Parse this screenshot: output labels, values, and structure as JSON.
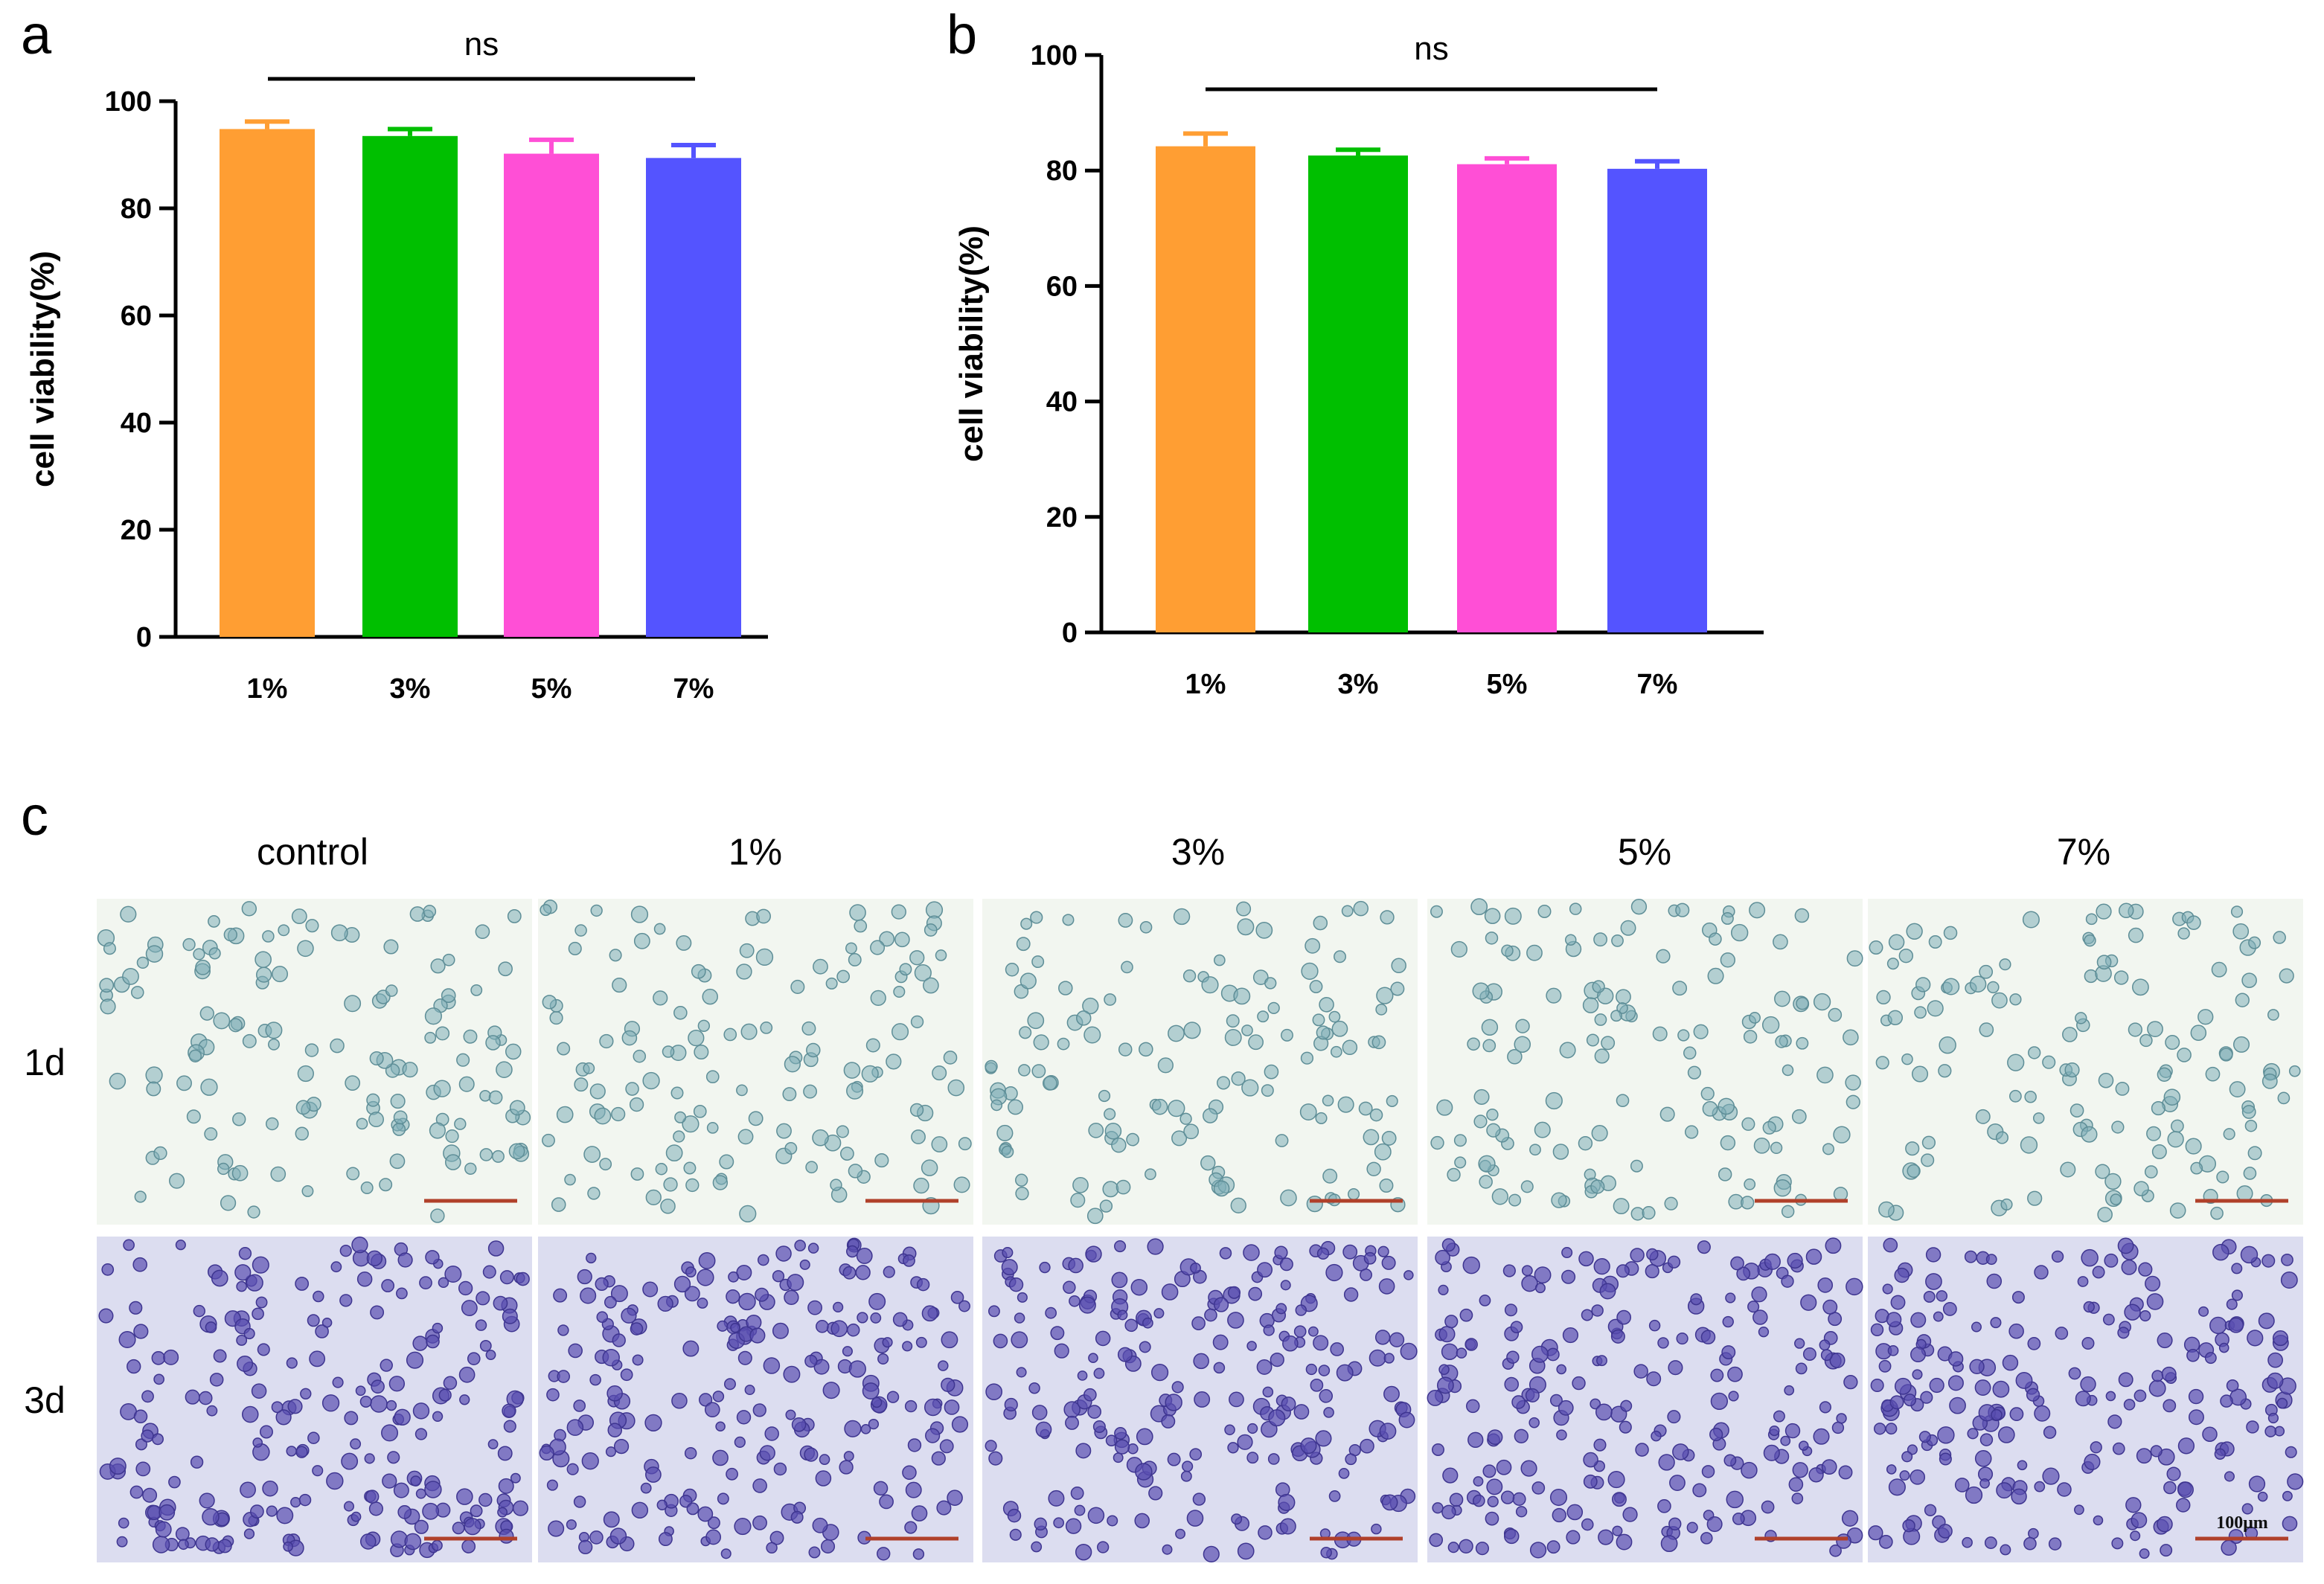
{
  "chart_data": [
    {
      "panel": "a",
      "type": "bar",
      "title": "",
      "xlabel": "",
      "ylabel": "cell viability(%)",
      "categories": [
        "1%",
        "3%",
        "5%",
        "7%"
      ],
      "values": [
        94.8,
        93.5,
        90.2,
        89.4
      ],
      "errors": [
        1.4,
        1.3,
        2.6,
        2.4
      ],
      "colors": [
        "#FF9E33",
        "#00BF00",
        "#FF4FD6",
        "#5454FF"
      ],
      "ylim": [
        0,
        100
      ],
      "yticks": [
        "0",
        "20",
        "40",
        "60",
        "80",
        "100"
      ],
      "significance": "ns",
      "grid": false
    },
    {
      "panel": "b",
      "type": "bar",
      "title": "",
      "xlabel": "",
      "ylabel": "cell viability(%)",
      "categories": [
        "1%",
        "3%",
        "5%",
        "7%"
      ],
      "values": [
        84.2,
        82.6,
        81.1,
        80.3
      ],
      "errors": [
        2.2,
        1.0,
        1.0,
        1.3
      ],
      "colors": [
        "#FF9E33",
        "#00BF00",
        "#FF4FD6",
        "#5454FF"
      ],
      "ylim": [
        0,
        100
      ],
      "yticks": [
        "0",
        "20",
        "40",
        "60",
        "80",
        "100"
      ],
      "significance": "ns",
      "grid": false
    }
  ],
  "microscopy": {
    "panel": "c",
    "columns": [
      "control",
      "1%",
      "3%",
      "5%",
      "7%"
    ],
    "rows": [
      "1d",
      "3d"
    ],
    "scale_bar_label": "100μm",
    "stain_colors": {
      "1d_background": "#F2F6F0",
      "1d_cell": "#7FAFB8",
      "3d_background": "#DCDDF0",
      "3d_cell": "#5A4FB0",
      "scale_bar": "#B0402A"
    }
  }
}
